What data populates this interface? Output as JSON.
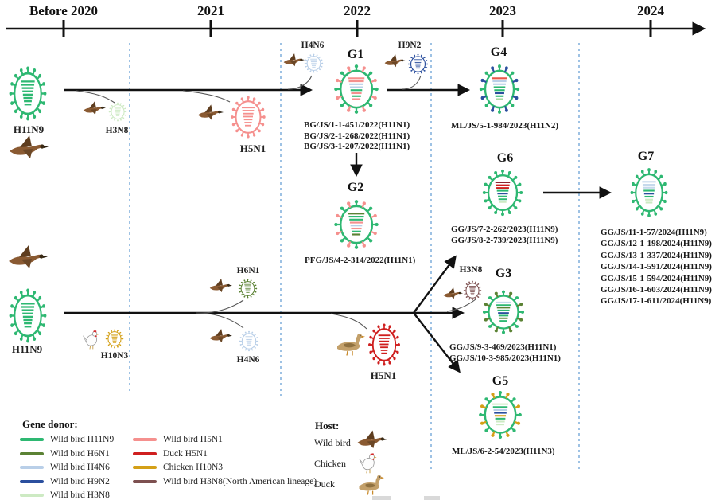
{
  "timeline": {
    "labels": [
      "Before 2020",
      "2021",
      "2022",
      "2023",
      "2024"
    ]
  },
  "groups": {
    "g1": {
      "label": "G1",
      "strains": [
        "BG/JS/1-1-451/2022(H11N1)",
        "BG/JS/2-1-268/2022(H11N1)",
        "BG/JS/3-1-207/2022(H11N1)"
      ]
    },
    "g2": {
      "label": "G2",
      "strains": [
        "PFG/JS/4-2-314/2022(H11N1)"
      ]
    },
    "g3": {
      "label": "G3",
      "strains": [
        "GG/JS/9-3-469/2023(H11N1)",
        "GG/JS/10-3-985/2023(H11N1)"
      ]
    },
    "g4": {
      "label": "G4",
      "strains": [
        "ML/JS/5-1-984/2023(H11N2)"
      ]
    },
    "g5": {
      "label": "G5",
      "strains": [
        "ML/JS/6-2-54/2023(H11N3)"
      ]
    },
    "g6": {
      "label": "G6",
      "strains": [
        "GG/JS/7-2-262/2023(H11N9)",
        "GG/JS/8-2-739/2023(H11N9)"
      ]
    },
    "g7": {
      "label": "G7",
      "strains": [
        "GG/JS/11-1-57/2024(H11N9)",
        "GG/JS/12-1-198/2024(H11N9)",
        "GG/JS/13-1-337/2024(H11N9)",
        "GG/JS/14-1-591/2024(H11N9)",
        "GG/JS/15-1-594/2024(H11N9)",
        "GG/JS/16-1-603/2024(H11N9)",
        "GG/JS/17-1-611/2024(H11N9)"
      ]
    }
  },
  "donor_labels": {
    "h11n9_top": "H11N9",
    "h11n9_bottom": "H11N9",
    "h3n8": "H3N8",
    "h5n1_wild": "H5N1",
    "h4n6_top": "H4N6",
    "h9n2": "H9N2",
    "h6n1": "H6N1",
    "h4n6_bottom": "H4N6",
    "h10n3": "H10N3",
    "h5n1_duck": "H5N1",
    "h3n8_na": "H3N8"
  },
  "legend": {
    "gene_donor_title": "Gene donor:",
    "column1": [
      {
        "label": "Wild bird H11N9",
        "color": "#2eb872"
      },
      {
        "label": "Wild bird H6N1",
        "color": "#5b8234"
      },
      {
        "label": "Wild bird H4N6",
        "color": "#b9cfe8"
      },
      {
        "label": "Wild bird H9N2",
        "color": "#2b4f9e"
      },
      {
        "label": "Wild bird H3N8",
        "color": "#cdeac3"
      }
    ],
    "column2": [
      {
        "label": "Wild bird H5N1",
        "color": "#f5908e"
      },
      {
        "label": "Duck H5N1",
        "color": "#cf1f1f"
      },
      {
        "label": "Chicken H10N3",
        "color": "#d4a017"
      },
      {
        "label": "Wild bird H3N8(North American lineage)",
        "color": "#7d5050"
      }
    ],
    "host_title": "Host:",
    "hosts": [
      "Wild bird",
      "Chicken",
      "Duck"
    ]
  },
  "viruses": {
    "h11n9_top": {
      "body": "#2eb872",
      "segments": [
        "#2eb872",
        "#2eb872",
        "#2eb872",
        "#2eb872",
        "#2eb872",
        "#2eb872",
        "#2eb872",
        "#2eb872"
      ]
    },
    "h11n9_bottom": {
      "body": "#2eb872",
      "segments": [
        "#2eb872",
        "#2eb872",
        "#2eb872",
        "#2eb872",
        "#2eb872",
        "#2eb872",
        "#2eb872",
        "#2eb872"
      ]
    },
    "g1": {
      "body": "#2eb872",
      "accent": "#f5908e",
      "segments": [
        "#f5908e",
        "#f5908e",
        "#b9cfe8",
        "#b9cfe8",
        "#2eb872",
        "#f5908e",
        "#2eb872",
        "#f5908e"
      ]
    },
    "g2": {
      "body": "#2eb872",
      "accent": "#f5908e",
      "segments": [
        "#5b8234",
        "#2eb872",
        "#2eb872",
        "#f5908e",
        "#b9cfe8",
        "#f5908e",
        "#2eb872",
        "#5b8234"
      ]
    },
    "g3": {
      "body": "#2eb872",
      "accent": "#5b8234",
      "segments": [
        "#c6d9ec",
        "#2eb872",
        "#5b8234",
        "#2eb872",
        "#2b4f9e",
        "#2eb872",
        "#5b8234",
        "#2eb872"
      ]
    },
    "g4": {
      "body": "#2eb872",
      "accent": "#2b4f9e",
      "segments": [
        "#e8564a",
        "#b9cfe8",
        "#b9cfe8",
        "#2eb872",
        "#2eb872",
        "#2b4f9e",
        "#2eb872",
        "#a9d9a0"
      ]
    },
    "g5": {
      "body": "#2eb872",
      "accent": "#d4a017",
      "segments": [
        "#cdeac3",
        "#2eb872",
        "#b9cfe8",
        "#2b4f9e",
        "#d4a017",
        "#2eb872",
        "#cdeac3",
        "#cdeac3"
      ]
    },
    "g6": {
      "body": "#2eb872",
      "segments": [
        "#8b2430",
        "#cf1f1f",
        "#cf1f1f",
        "#2eb872",
        "#2b4f9e",
        "#2eb872",
        "#2eb872",
        "#cdeac3"
      ]
    },
    "g7": {
      "body": "#2eb872",
      "segments": [
        "#c6d9ec",
        "#c6d9ec",
        "#c6d9ec",
        "#2eb872",
        "#2b4f9e",
        "#2eb872",
        "#cdeac3",
        "#cdeac3"
      ]
    },
    "h5n1_wild": {
      "body": "#f5908e"
    },
    "h5n1_duck": {
      "body": "#cf1f1f"
    },
    "h3n8": {
      "body": "#cdeac3"
    },
    "h4n6_top": {
      "body": "#b9cfe8"
    },
    "h9n2": {
      "body": "#2b4f9e"
    },
    "h6n1": {
      "body": "#5b8234"
    },
    "h4n6_bottom": {
      "body": "#b9cfe8"
    },
    "h10n3": {
      "body": "#d4a017"
    },
    "h3n8_na": {
      "body": "#7d5050"
    }
  }
}
